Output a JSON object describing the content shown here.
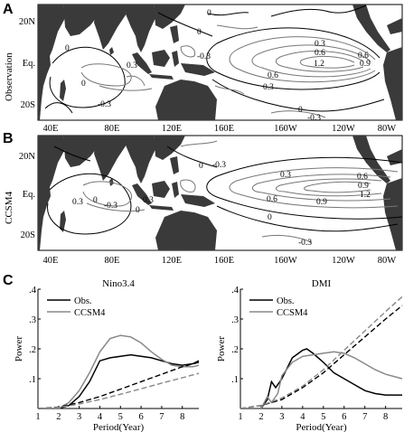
{
  "panels": {
    "a": {
      "letter": "A",
      "side_label": "Observation",
      "lat_labels": [
        "20N",
        "Eq.",
        "20S"
      ],
      "lon_labels": [
        "40E",
        "80E",
        "120E",
        "160E",
        "160W",
        "120W",
        "80W"
      ],
      "contour_labels": [
        {
          "text": "0"
        },
        {
          "text": "0"
        },
        {
          "text": "0"
        },
        {
          "text": "0.3"
        },
        {
          "text": "0.6"
        },
        {
          "text": "0.9"
        },
        {
          "text": "1.2"
        },
        {
          "text": "0.6"
        },
        {
          "text": "0.3"
        },
        {
          "text": "-0.3"
        },
        {
          "text": "0.6"
        },
        {
          "text": "0.3"
        },
        {
          "text": "0"
        },
        {
          "text": "-0.3"
        },
        {
          "text": "0"
        },
        {
          "text": "-0.3"
        }
      ]
    },
    "b": {
      "letter": "B",
      "side_label": "CCSM4",
      "lat_labels": [
        "20N",
        "Eq.",
        "20S"
      ],
      "lon_labels": [
        "40E",
        "80E",
        "120E",
        "160E",
        "160W",
        "120W",
        "80W"
      ],
      "contour_labels": [
        {
          "text": "-0.3"
        },
        {
          "text": "0.3"
        },
        {
          "text": "0"
        },
        {
          "text": "-0.3"
        },
        {
          "text": "0"
        },
        {
          "text": "0.3"
        },
        {
          "text": "0.6"
        },
        {
          "text": "0.9"
        },
        {
          "text": "0.6"
        },
        {
          "text": "0.9"
        },
        {
          "text": "1.2"
        },
        {
          "text": "0.3"
        },
        {
          "text": "0"
        },
        {
          "text": "-0.3"
        },
        {
          "text": "0"
        }
      ]
    },
    "c": {
      "letter": "C"
    }
  },
  "chart_data": [
    {
      "type": "line",
      "title": "Nino3.4",
      "xlabel": "Period(Year)",
      "ylabel": "Power",
      "xlim": [
        1,
        8.8
      ],
      "ylim": [
        0,
        0.4
      ],
      "x_ticks": [
        1,
        2,
        3,
        4,
        5,
        6,
        7,
        8
      ],
      "y_ticks": [
        ".1",
        ".2",
        ".3",
        ".4"
      ],
      "legend": "top-left",
      "series": [
        {
          "name": "Obs.",
          "color": "#000000",
          "style": "solid",
          "x": [
            1,
            2,
            2.5,
            3,
            3.5,
            4,
            4.5,
            5,
            5.5,
            6,
            6.5,
            7,
            7.5,
            8,
            8.5,
            8.8
          ],
          "y": [
            0,
            0,
            0.01,
            0.04,
            0.09,
            0.16,
            0.17,
            0.175,
            0.18,
            0.175,
            0.17,
            0.16,
            0.15,
            0.145,
            0.15,
            0.16
          ]
        },
        {
          "name": "CCSM4",
          "color": "#888888",
          "style": "solid",
          "x": [
            1,
            2,
            2.5,
            3,
            3.5,
            4,
            4.5,
            5,
            5.5,
            6,
            6.5,
            7,
            7.5,
            8,
            8.5,
            8.8
          ],
          "y": [
            0,
            0,
            0.02,
            0.06,
            0.12,
            0.19,
            0.235,
            0.245,
            0.24,
            0.22,
            0.19,
            0.165,
            0.145,
            0.14,
            0.14,
            0.145
          ]
        },
        {
          "color": "#000000",
          "style": "dashed",
          "x": [
            1,
            2,
            3,
            4,
            5,
            6,
            7,
            8,
            8.8
          ],
          "y": [
            0,
            0.005,
            0.02,
            0.04,
            0.065,
            0.09,
            0.115,
            0.14,
            0.155
          ]
        },
        {
          "color": "#888888",
          "style": "dashed",
          "x": [
            1,
            2,
            3,
            4,
            5,
            6,
            7,
            8,
            8.8
          ],
          "y": [
            0,
            0.004,
            0.015,
            0.03,
            0.048,
            0.066,
            0.085,
            0.103,
            0.118
          ]
        }
      ]
    },
    {
      "type": "line",
      "title": "DMI",
      "xlabel": "Period(Year)",
      "ylabel": "Power",
      "xlim": [
        1,
        8.8
      ],
      "ylim": [
        0,
        0.4
      ],
      "x_ticks": [
        1,
        2,
        3,
        4,
        5,
        6,
        7,
        8
      ],
      "y_ticks": [
        ".1",
        ".2",
        ".3",
        ".4"
      ],
      "legend": "top-left",
      "series": [
        {
          "name": "Obs.",
          "color": "#000000",
          "style": "solid",
          "x": [
            1,
            2,
            2.3,
            2.5,
            2.7,
            3,
            3.5,
            4,
            4.2,
            4.5,
            5,
            5.5,
            6,
            6.5,
            7,
            7.5,
            8,
            8.8
          ],
          "y": [
            0,
            0,
            0.03,
            0.09,
            0.07,
            0.1,
            0.17,
            0.195,
            0.2,
            0.185,
            0.155,
            0.12,
            0.1,
            0.08,
            0.06,
            0.05,
            0.045,
            0.045
          ]
        },
        {
          "name": "CCSM4",
          "color": "#888888",
          "style": "solid",
          "x": [
            1,
            2,
            2.3,
            2.5,
            2.8,
            3,
            3.5,
            4,
            4.5,
            5,
            5.5,
            6,
            6.5,
            7,
            7.5,
            8,
            8.8
          ],
          "y": [
            0,
            0,
            0.04,
            0.02,
            0.05,
            0.11,
            0.155,
            0.175,
            0.18,
            0.185,
            0.19,
            0.185,
            0.17,
            0.15,
            0.13,
            0.115,
            0.1
          ]
        },
        {
          "color": "#000000",
          "style": "dashed",
          "x": [
            1,
            2,
            3,
            4,
            5,
            6,
            7,
            8,
            8.8
          ],
          "y": [
            0,
            0.01,
            0.03,
            0.07,
            0.12,
            0.18,
            0.24,
            0.3,
            0.345
          ]
        },
        {
          "color": "#888888",
          "style": "dashed",
          "x": [
            1,
            2,
            3,
            4,
            5,
            6,
            7,
            8,
            8.8
          ],
          "y": [
            0,
            0.01,
            0.035,
            0.075,
            0.13,
            0.195,
            0.26,
            0.325,
            0.375
          ]
        }
      ]
    }
  ]
}
